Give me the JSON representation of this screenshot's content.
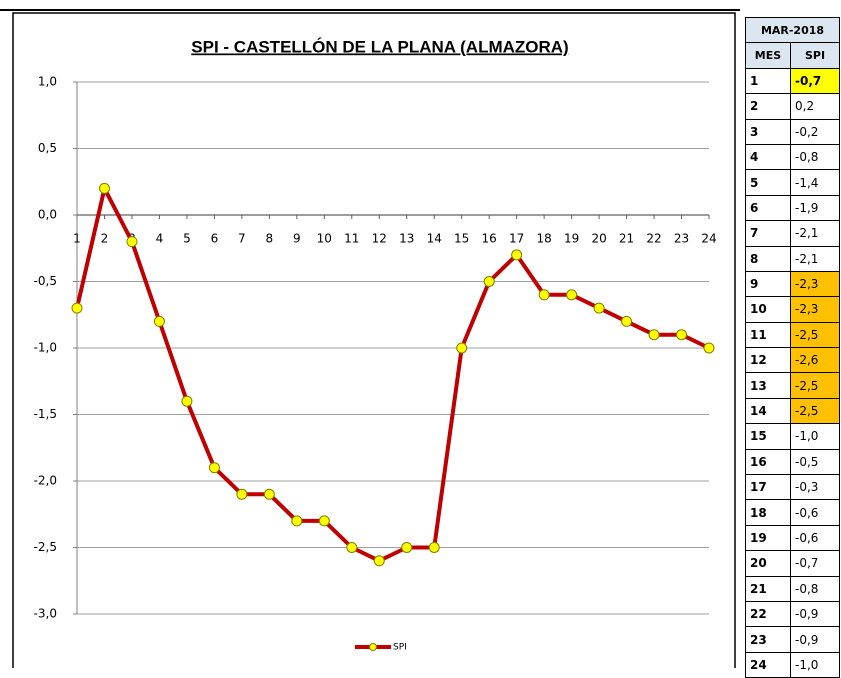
{
  "chart_data": {
    "type": "line",
    "title": "SPI - CASTELLÓN DE LA PLANA (ALMAZORA)",
    "categories": [
      "1",
      "2",
      "3",
      "4",
      "5",
      "6",
      "7",
      "8",
      "9",
      "10",
      "11",
      "12",
      "13",
      "14",
      "15",
      "16",
      "17",
      "18",
      "19",
      "20",
      "21",
      "22",
      "23",
      "24"
    ],
    "series": [
      {
        "name": "SPI",
        "color": "#c00000",
        "marker_color": "#ffff00",
        "values": [
          -0.7,
          0.2,
          -0.2,
          -0.8,
          -1.4,
          -1.9,
          -2.1,
          -2.1,
          -2.3,
          -2.3,
          -2.5,
          -2.6,
          -2.5,
          -2.5,
          -1.0,
          -0.5,
          -0.3,
          -0.6,
          -0.6,
          -0.7,
          -0.8,
          -0.9,
          -0.9,
          -1.0
        ]
      }
    ],
    "ylim": [
      -3,
      1
    ],
    "yticks": [
      {
        "value": -3,
        "label": "-3,0"
      },
      {
        "value": -2.5,
        "label": "-2,5"
      },
      {
        "value": -2,
        "label": "-2,0"
      },
      {
        "value": -1.5,
        "label": "-1,5"
      },
      {
        "value": -1,
        "label": "-1,0"
      },
      {
        "value": -0.5,
        "label": "-0,5"
      },
      {
        "value": 0,
        "label": "0,0"
      },
      {
        "value": 0.5,
        "label": "0,5"
      },
      {
        "value": 1,
        "label": "1,0"
      }
    ],
    "grid": true
  },
  "table": {
    "title": "MAR-2018",
    "headers": [
      "MES",
      "SPI"
    ],
    "rows": [
      [
        "1",
        "-0,7"
      ],
      [
        "2",
        "0,2"
      ],
      [
        "3",
        "-0,2"
      ],
      [
        "4",
        "-0,8"
      ],
      [
        "5",
        "-1,4"
      ],
      [
        "6",
        "-1,9"
      ],
      [
        "7",
        "-2,1"
      ],
      [
        "8",
        "-2,1"
      ],
      [
        "9",
        "-2,3"
      ],
      [
        "10",
        "-2,3"
      ],
      [
        "11",
        "-2,5"
      ],
      [
        "12",
        "-2,6"
      ],
      [
        "13",
        "-2,5"
      ],
      [
        "14",
        "-2,5"
      ],
      [
        "15",
        "-1,0"
      ],
      [
        "16",
        "-0,5"
      ],
      [
        "17",
        "-0,3"
      ],
      [
        "18",
        "-0,6"
      ],
      [
        "19",
        "-0,6"
      ],
      [
        "20",
        "-0,7"
      ],
      [
        "21",
        "-0,8"
      ],
      [
        "22",
        "-0,9"
      ],
      [
        "23",
        "-0,9"
      ],
      [
        "24",
        "-1,0"
      ]
    ]
  }
}
